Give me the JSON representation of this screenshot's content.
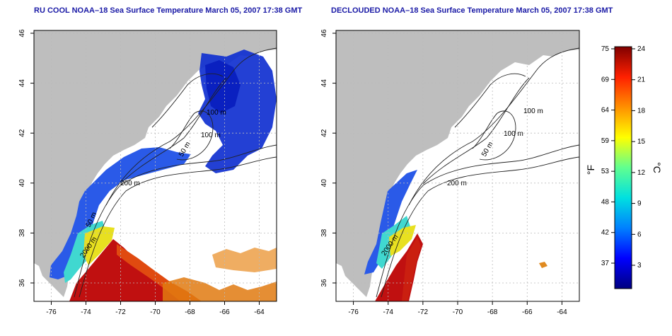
{
  "left_panel": {
    "title": "RU COOL NOAA–18 Sea Surface Temperature March 05, 2007 17:38 GMT",
    "x_ticks": [
      "-76",
      "-74",
      "-72",
      "-70",
      "-68",
      "-66",
      "-64"
    ],
    "y_ticks": [
      "46",
      "44",
      "42",
      "40",
      "38",
      "36"
    ],
    "depth_labels": [
      "100 m",
      "100 m",
      "50 m",
      "200 m",
      "50 m",
      "2000 m"
    ]
  },
  "right_panel": {
    "title": "DECLOUDED NOAA–18 Sea Surface Temperature March 05, 2007 17:38 GMT",
    "x_ticks": [
      "-76",
      "-74",
      "-72",
      "-70",
      "-68",
      "-66",
      "-64"
    ],
    "y_ticks": [
      "46",
      "44",
      "42",
      "40",
      "38",
      "36"
    ],
    "depth_labels": [
      "100 m",
      "100 m",
      "50 m",
      "200 m",
      "2000 m"
    ]
  },
  "colorbar": {
    "fahrenheit_unit": "°F",
    "celsius_unit": "°C",
    "fahrenheit_ticks": [
      "75",
      "69",
      "64",
      "59",
      "53",
      "48",
      "42",
      "37"
    ],
    "celsius_ticks": [
      "24",
      "21",
      "18",
      "15",
      "12",
      "9",
      "6",
      "3"
    ],
    "colors": [
      "#000080",
      "#0000ff",
      "#0080ff",
      "#00e0e0",
      "#60ff90",
      "#ffff00",
      "#ff9000",
      "#ff2000",
      "#800000"
    ]
  },
  "colors": {
    "land": "#bebebe",
    "ocean": "#ffffff",
    "title": "#1a1aa6",
    "grid": "#bbbbbb"
  }
}
